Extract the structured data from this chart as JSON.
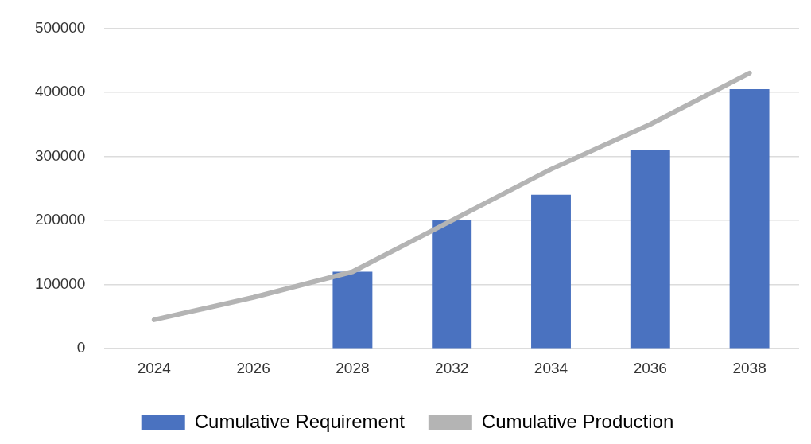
{
  "chart_data": {
    "type": "bar",
    "categories": [
      "2024",
      "2026",
      "2028",
      "2032",
      "2034",
      "2036",
      "2038"
    ],
    "series": [
      {
        "name": "Cumulative Requirement",
        "color": "#4a72c0",
        "values": [
          null,
          null,
          120000,
          200000,
          240000,
          310000,
          405000
        ]
      },
      {
        "name": "Cumulative Production",
        "type": "line",
        "color": "#b4b4b4",
        "values": [
          45000,
          80000,
          120000,
          200000,
          280000,
          350000,
          430000
        ]
      }
    ],
    "ylim": [
      0,
      500000
    ],
    "yticks": [
      0,
      100000,
      200000,
      300000,
      400000,
      500000
    ],
    "grid": "y",
    "legend": "bottom",
    "marker": "none"
  }
}
